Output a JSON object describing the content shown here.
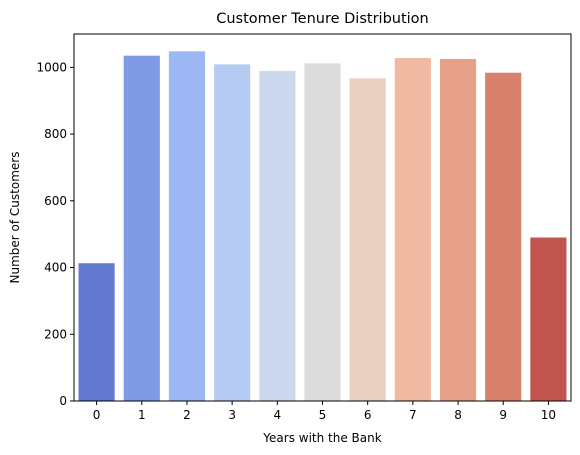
{
  "chart_data": {
    "type": "bar",
    "title": "Customer Tenure Distribution",
    "xlabel": "Years with the Bank",
    "ylabel": "Number of Customers",
    "categories": [
      "0",
      "1",
      "2",
      "3",
      "4",
      "5",
      "6",
      "7",
      "8",
      "9",
      "10"
    ],
    "values": [
      413,
      1035,
      1048,
      1009,
      989,
      1012,
      967,
      1028,
      1025,
      984,
      490
    ],
    "ylim": [
      0,
      1100
    ],
    "yticks": [
      0,
      200,
      400,
      600,
      800,
      1000
    ],
    "grid": false,
    "colors": [
      "#6479d2",
      "#7f9be6",
      "#9cb7f4",
      "#b6cbf3",
      "#cbd8ee",
      "#dcdcdc",
      "#e9d1c3",
      "#efbaa1",
      "#e5a087",
      "#d8826c",
      "#c0544e"
    ]
  }
}
